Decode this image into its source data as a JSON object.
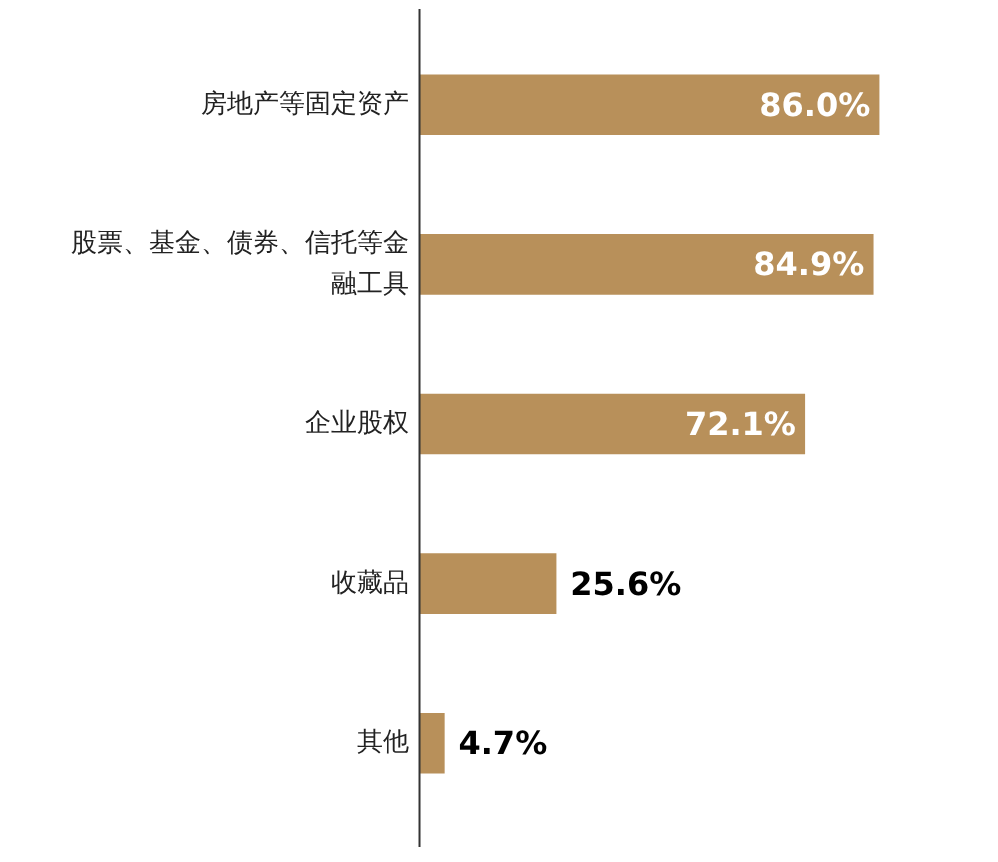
{
  "chart_data": {
    "type": "bar",
    "orientation": "horizontal",
    "categories": [
      "房地产等固定资产",
      "股票、基金、债券、信托等金融工具",
      "企业股权",
      "收藏品",
      "其他"
    ],
    "values": [
      86.0,
      84.9,
      72.1,
      25.6,
      4.7
    ],
    "value_labels": [
      "86.0%",
      "84.9%",
      "72.1%",
      "25.6%",
      "4.7%"
    ],
    "color": "#b8905a"
  }
}
